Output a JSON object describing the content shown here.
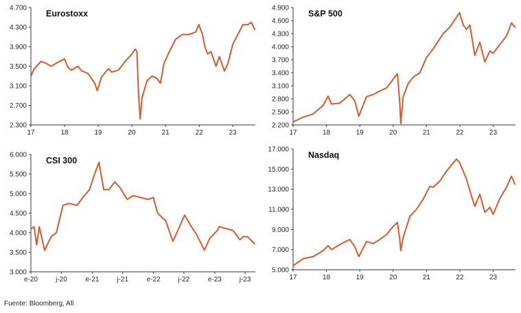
{
  "source": "Fuente: Bloomberg, Afi",
  "chart_data": [
    {
      "type": "line",
      "title": "Eurostoxx",
      "xlabel": "",
      "ylabel": "",
      "color": "#D9582B",
      "grid": false,
      "xlim": [
        2017,
        2023.67
      ],
      "ylim": [
        2300,
        4700
      ],
      "x_ticks": [
        2017,
        2018,
        2019,
        2020,
        2021,
        2022,
        2023
      ],
      "x_tick_labels": [
        "17",
        "18",
        "19",
        "20",
        "21",
        "22",
        "23"
      ],
      "y_ticks": [
        2300,
        2700,
        3100,
        3500,
        3900,
        4300,
        4700
      ],
      "y_tick_labels": [
        "2.300",
        "2.700",
        "3.100",
        "3.500",
        "3.900",
        "4.300",
        "4.700"
      ],
      "series": [
        {
          "x": [
            2017.0,
            2017.1,
            2017.3,
            2017.45,
            2017.6,
            2017.8,
            2018.0,
            2018.1,
            2018.2,
            2018.4,
            2018.5,
            2018.7,
            2018.9,
            2018.97,
            2019.1,
            2019.3,
            2019.4,
            2019.6,
            2019.8,
            2020.0,
            2020.1,
            2020.15,
            2020.2,
            2020.25,
            2020.3,
            2020.45,
            2020.6,
            2020.75,
            2020.85,
            2020.95,
            2021.1,
            2021.3,
            2021.5,
            2021.7,
            2021.9,
            2021.99,
            2022.1,
            2022.17,
            2022.25,
            2022.35,
            2022.5,
            2022.6,
            2022.75,
            2022.85,
            2023.0,
            2023.15,
            2023.3,
            2023.45,
            2023.55,
            2023.65
          ],
          "y": [
            3300,
            3450,
            3600,
            3560,
            3500,
            3580,
            3650,
            3480,
            3420,
            3500,
            3410,
            3350,
            3150,
            3000,
            3280,
            3450,
            3380,
            3420,
            3600,
            3750,
            3850,
            3800,
            2900,
            2420,
            2850,
            3200,
            3300,
            3250,
            3150,
            3550,
            3780,
            4050,
            4150,
            4150,
            4200,
            4350,
            4150,
            3900,
            3750,
            3800,
            3500,
            3700,
            3400,
            3550,
            3950,
            4150,
            4350,
            4350,
            4400,
            4250
          ]
        }
      ]
    },
    {
      "type": "line",
      "title": "S&P 500",
      "xlabel": "",
      "ylabel": "",
      "color": "#D9582B",
      "grid": false,
      "xlim": [
        2017,
        2023.67
      ],
      "ylim": [
        2200,
        4900
      ],
      "x_ticks": [
        2017,
        2018,
        2019,
        2020,
        2021,
        2022,
        2023
      ],
      "x_tick_labels": [
        "17",
        "18",
        "19",
        "20",
        "21",
        "22",
        "23"
      ],
      "y_ticks": [
        2200,
        2500,
        2800,
        3100,
        3400,
        3700,
        4000,
        4300,
        4600,
        4900
      ],
      "y_tick_labels": [
        "2.200",
        "2.500",
        "2.800",
        "3.100",
        "3.400",
        "3.700",
        "4.000",
        "4.300",
        "4.600",
        "4.900"
      ],
      "series": [
        {
          "x": [
            2017.0,
            2017.3,
            2017.6,
            2017.9,
            2018.05,
            2018.15,
            2018.4,
            2018.7,
            2018.85,
            2018.97,
            2019.2,
            2019.4,
            2019.6,
            2019.8,
            2020.0,
            2020.13,
            2020.2,
            2020.23,
            2020.3,
            2020.45,
            2020.6,
            2020.8,
            2021.0,
            2021.2,
            2021.5,
            2021.7,
            2021.99,
            2022.1,
            2022.2,
            2022.3,
            2022.45,
            2022.6,
            2022.75,
            2022.9,
            2023.0,
            2023.2,
            2023.4,
            2023.55,
            2023.65
          ],
          "y": [
            2270,
            2380,
            2450,
            2650,
            2860,
            2680,
            2700,
            2900,
            2750,
            2400,
            2850,
            2900,
            2980,
            3050,
            3250,
            3380,
            2700,
            2230,
            2850,
            3150,
            3300,
            3400,
            3750,
            3950,
            4300,
            4450,
            4780,
            4500,
            4400,
            4500,
            3800,
            4100,
            3650,
            3900,
            3850,
            4050,
            4250,
            4550,
            4450
          ]
        }
      ]
    },
    {
      "type": "line",
      "title": "CSI 300",
      "xlabel": "",
      "ylabel": "",
      "color": "#D9582B",
      "grid": false,
      "xlim": [
        "2020-01-01",
        "2023-08-31"
      ],
      "ylim": [
        3000,
        6000
      ],
      "x_ticks": [
        "2020-01-01",
        "2020-07-01",
        "2021-01-01",
        "2021-07-01",
        "2022-01-01",
        "2022-07-01",
        "2023-01-01",
        "2023-07-01"
      ],
      "x_tick_labels": [
        "e-20",
        "j-20",
        "e-21",
        "j-21",
        "e-22",
        "j-22",
        "e-23",
        "j-23"
      ],
      "y_ticks": [
        3000,
        3500,
        4000,
        4500,
        5000,
        5500,
        6000
      ],
      "y_tick_labels": [
        "3.000",
        "3.500",
        "4.000",
        "4.500",
        "5.000",
        "5.500",
        "6.000"
      ],
      "series": [
        {
          "x": [
            "2020-01-01",
            "2020-01-20",
            "2020-02-04",
            "2020-02-20",
            "2020-03-23",
            "2020-05-01",
            "2020-06-01",
            "2020-07-10",
            "2020-08-15",
            "2020-10-01",
            "2020-11-15",
            "2020-12-15",
            "2021-01-15",
            "2021-02-10",
            "2021-03-10",
            "2021-04-10",
            "2021-05-15",
            "2021-06-15",
            "2021-07-28",
            "2021-09-01",
            "2021-10-15",
            "2021-12-01",
            "2021-12-31",
            "2022-01-25",
            "2022-03-15",
            "2022-04-26",
            "2022-05-20",
            "2022-07-05",
            "2022-08-15",
            "2022-09-15",
            "2022-10-31",
            "2022-12-01",
            "2023-01-15",
            "2023-01-28",
            "2023-03-15",
            "2023-04-20",
            "2023-05-31",
            "2023-06-20",
            "2023-07-15",
            "2023-08-25"
          ],
          "y": [
            4100,
            4150,
            3690,
            4150,
            3550,
            3900,
            4000,
            4700,
            4750,
            4700,
            4950,
            5100,
            5500,
            5800,
            5100,
            5100,
            5300,
            5150,
            4850,
            4950,
            4900,
            4850,
            4900,
            4500,
            4300,
            3780,
            4000,
            4450,
            4150,
            3950,
            3550,
            3850,
            4050,
            4150,
            4100,
            4050,
            3820,
            3900,
            3900,
            3720
          ]
        }
      ]
    },
    {
      "type": "line",
      "title": "Nasdaq",
      "xlabel": "",
      "ylabel": "",
      "color": "#D9582B",
      "grid": false,
      "xlim": [
        2017,
        2023.67
      ],
      "ylim": [
        5000,
        17000
      ],
      "x_ticks": [
        2017,
        2018,
        2019,
        2020,
        2021,
        2022,
        2023
      ],
      "x_tick_labels": [
        "17",
        "18",
        "19",
        "20",
        "21",
        "22",
        "23"
      ],
      "y_ticks": [
        5000,
        7000,
        9000,
        11000,
        13000,
        15000,
        17000
      ],
      "y_tick_labels": [
        "5.000",
        "7.000",
        "9.000",
        "11.000",
        "13.000",
        "15.000",
        "17.000"
      ],
      "series": [
        {
          "x": [
            2017.0,
            2017.3,
            2017.6,
            2017.9,
            2018.05,
            2018.15,
            2018.45,
            2018.7,
            2018.85,
            2018.97,
            2019.2,
            2019.4,
            2019.6,
            2019.8,
            2020.0,
            2020.13,
            2020.2,
            2020.23,
            2020.3,
            2020.5,
            2020.7,
            2020.9,
            2021.1,
            2021.2,
            2021.4,
            2021.6,
            2021.9,
            2022.0,
            2022.2,
            2022.35,
            2022.45,
            2022.6,
            2022.75,
            2022.9,
            2023.0,
            2023.2,
            2023.4,
            2023.55,
            2023.65
          ],
          "y": [
            5400,
            6100,
            6300,
            6900,
            7400,
            7000,
            7600,
            8000,
            7300,
            6300,
            7800,
            7600,
            8000,
            8500,
            9300,
            9700,
            8000,
            6900,
            8200,
            10300,
            11000,
            12000,
            13300,
            13200,
            13800,
            14800,
            16000,
            15600,
            14000,
            12300,
            11300,
            12500,
            10700,
            11200,
            10500,
            12100,
            13200,
            14300,
            13500
          ]
        }
      ]
    }
  ]
}
